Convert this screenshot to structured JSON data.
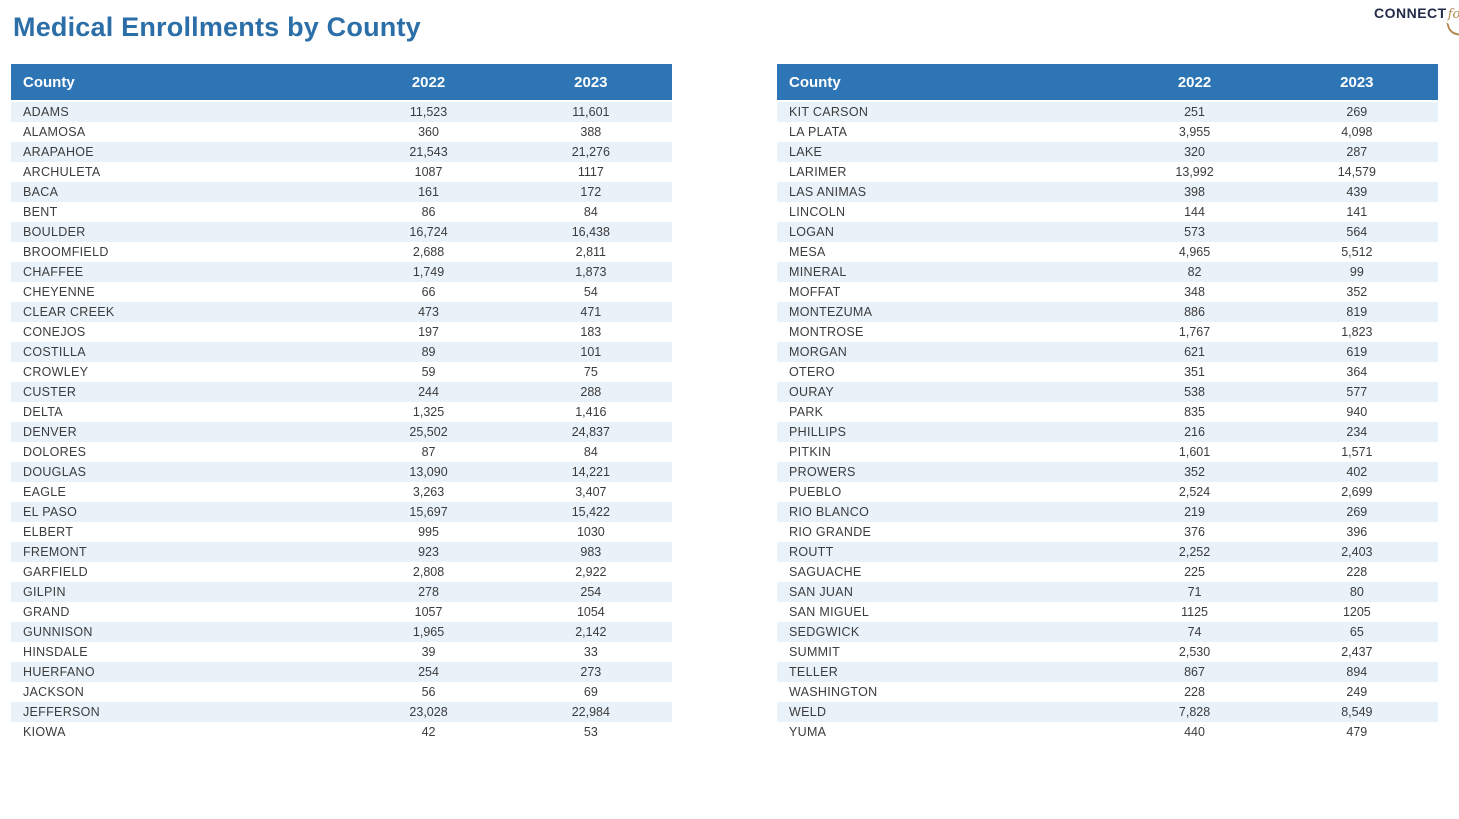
{
  "page_title": "Medical Enrollments by County",
  "logo": {
    "text": "CONNECT",
    "script_text": "for",
    "partial_text": "H",
    "brand_navy": "#222B49",
    "brand_gold": "#B08A4F"
  },
  "colors": {
    "title_blue": "#2C6FA8",
    "header_bg": "#2E75B6",
    "header_text": "#FFFFFF",
    "row_alt": "#E9F2F9",
    "row_text": "#3C3C3C"
  },
  "tables": [
    {
      "columns": [
        "County",
        "2022",
        "2023"
      ],
      "rows": [
        [
          "ADAMS",
          "11,523",
          "11,601"
        ],
        [
          "ALAMOSA",
          "360",
          "388"
        ],
        [
          "ARAPAHOE",
          "21,543",
          "21,276"
        ],
        [
          "ARCHULETA",
          "1087",
          "1117"
        ],
        [
          "BACA",
          "161",
          "172"
        ],
        [
          "BENT",
          "86",
          "84"
        ],
        [
          "BOULDER",
          "16,724",
          "16,438"
        ],
        [
          "BROOMFIELD",
          "2,688",
          "2,811"
        ],
        [
          "CHAFFEE",
          "1,749",
          "1,873"
        ],
        [
          "CHEYENNE",
          "66",
          "54"
        ],
        [
          "CLEAR CREEK",
          "473",
          "471"
        ],
        [
          "CONEJOS",
          "197",
          "183"
        ],
        [
          "COSTILLA",
          "89",
          "101"
        ],
        [
          "CROWLEY",
          "59",
          "75"
        ],
        [
          "CUSTER",
          "244",
          "288"
        ],
        [
          "DELTA",
          "1,325",
          "1,416"
        ],
        [
          "DENVER",
          "25,502",
          "24,837"
        ],
        [
          "DOLORES",
          "87",
          "84"
        ],
        [
          "DOUGLAS",
          "13,090",
          "14,221"
        ],
        [
          "EAGLE",
          "3,263",
          "3,407"
        ],
        [
          "EL PASO",
          "15,697",
          "15,422"
        ],
        [
          "ELBERT",
          "995",
          "1030"
        ],
        [
          "FREMONT",
          "923",
          "983"
        ],
        [
          "GARFIELD",
          "2,808",
          "2,922"
        ],
        [
          "GILPIN",
          "278",
          "254"
        ],
        [
          "GRAND",
          "1057",
          "1054"
        ],
        [
          "GUNNISON",
          "1,965",
          "2,142"
        ],
        [
          "HINSDALE",
          "39",
          "33"
        ],
        [
          "HUERFANO",
          "254",
          "273"
        ],
        [
          "JACKSON",
          "56",
          "69"
        ],
        [
          "JEFFERSON",
          "23,028",
          "22,984"
        ],
        [
          "KIOWA",
          "42",
          "53"
        ]
      ]
    },
    {
      "columns": [
        "County",
        "2022",
        "2023"
      ],
      "rows": [
        [
          "KIT CARSON",
          "251",
          "269"
        ],
        [
          "LA PLATA",
          "3,955",
          "4,098"
        ],
        [
          "LAKE",
          "320",
          "287"
        ],
        [
          "LARIMER",
          "13,992",
          "14,579"
        ],
        [
          "LAS ANIMAS",
          "398",
          "439"
        ],
        [
          "LINCOLN",
          "144",
          "141"
        ],
        [
          "LOGAN",
          "573",
          "564"
        ],
        [
          "MESA",
          "4,965",
          "5,512"
        ],
        [
          "MINERAL",
          "82",
          "99"
        ],
        [
          "MOFFAT",
          "348",
          "352"
        ],
        [
          "MONTEZUMA",
          "886",
          "819"
        ],
        [
          "MONTROSE",
          "1,767",
          "1,823"
        ],
        [
          "MORGAN",
          "621",
          "619"
        ],
        [
          "OTERO",
          "351",
          "364"
        ],
        [
          "OURAY",
          "538",
          "577"
        ],
        [
          "PARK",
          "835",
          "940"
        ],
        [
          "PHILLIPS",
          "216",
          "234"
        ],
        [
          "PITKIN",
          "1,601",
          "1,571"
        ],
        [
          "PROWERS",
          "352",
          "402"
        ],
        [
          "PUEBLO",
          "2,524",
          "2,699"
        ],
        [
          "RIO BLANCO",
          "219",
          "269"
        ],
        [
          "RIO GRANDE",
          "376",
          "396"
        ],
        [
          "ROUTT",
          "2,252",
          "2,403"
        ],
        [
          "SAGUACHE",
          "225",
          "228"
        ],
        [
          "SAN JUAN",
          "71",
          "80"
        ],
        [
          "SAN MIGUEL",
          "1125",
          "1205"
        ],
        [
          "SEDGWICK",
          "74",
          "65"
        ],
        [
          "SUMMIT",
          "2,530",
          "2,437"
        ],
        [
          "TELLER",
          "867",
          "894"
        ],
        [
          "WASHINGTON",
          "228",
          "249"
        ],
        [
          "WELD",
          "7,828",
          "8,549"
        ],
        [
          "YUMA",
          "440",
          "479"
        ]
      ]
    }
  ]
}
